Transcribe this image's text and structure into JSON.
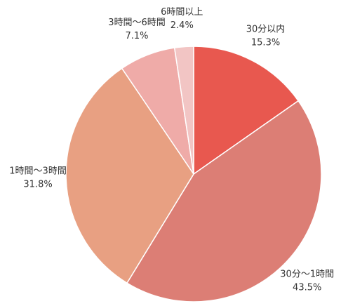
{
  "chart_data": {
    "type": "pie",
    "categories": [
      "30分以内",
      "30分〜1時間",
      "1時間〜3時間",
      "3時間〜6時間",
      "6時間以上"
    ],
    "values": [
      15.3,
      43.5,
      31.8,
      7.1,
      2.4
    ],
    "value_labels": [
      "15.3%",
      "43.5%",
      "31.8%",
      "7.1%",
      "2.4%"
    ],
    "colors": [
      "#e8584f",
      "#dc7e75",
      "#e8a082",
      "#efaba8",
      "#f2c5c4"
    ]
  }
}
